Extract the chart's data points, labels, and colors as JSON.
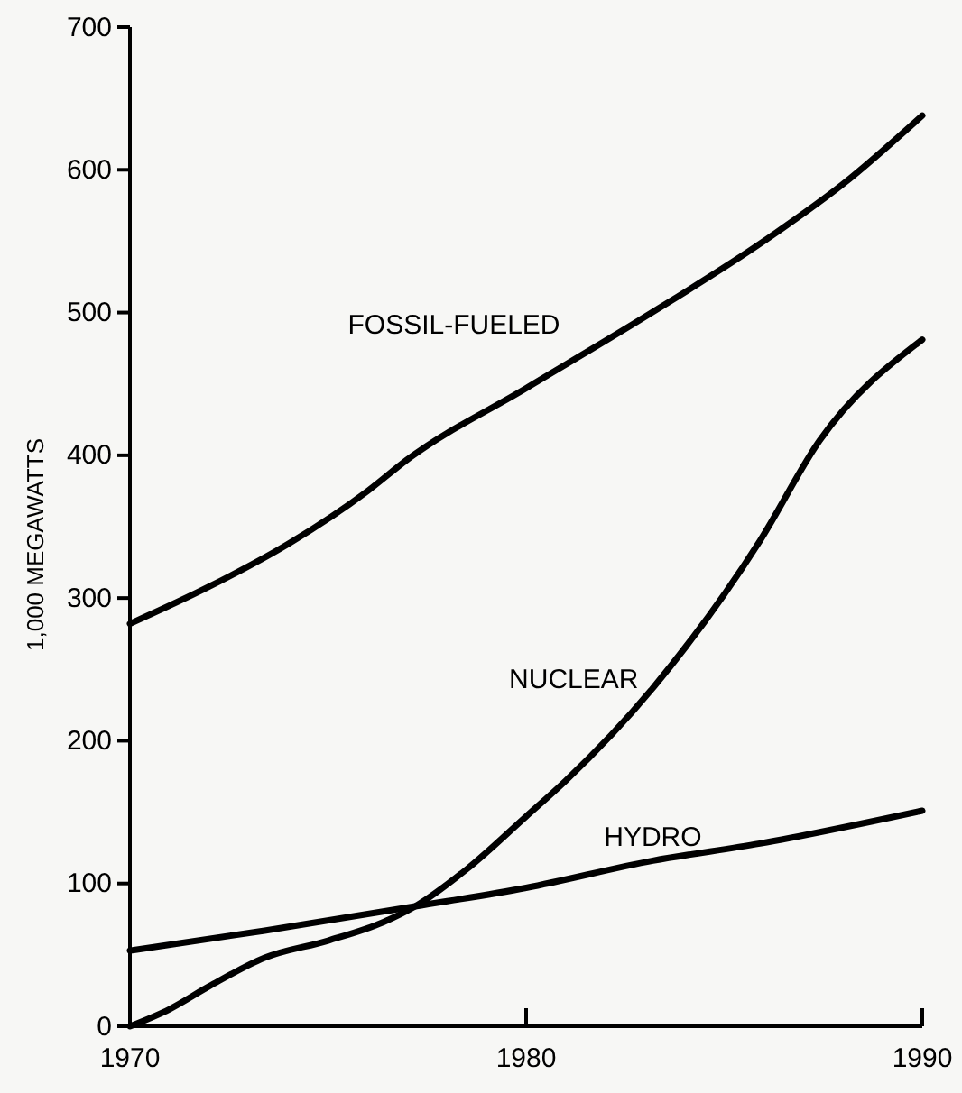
{
  "chart_data": {
    "type": "line",
    "ylabel": "1,000 MEGAWATTS",
    "xlim": [
      1970,
      1990
    ],
    "xticks": [
      1970,
      1980,
      1990
    ],
    "ylim": [
      0,
      700
    ],
    "yticks": [
      0,
      100,
      200,
      300,
      400,
      500,
      600,
      700
    ],
    "grid": false,
    "legend": false,
    "marker": "none",
    "line_style": "solid",
    "series": [
      {
        "name": "FOSSIL-FUELED",
        "color": "#000000",
        "x": [
          1970,
          1972,
          1974,
          1976,
          1977,
          1980,
          1983,
          1986,
          1988,
          1990
        ],
        "values": [
          282,
          308,
          338,
          375,
          397,
          447,
          497,
          550,
          590,
          638
        ]
      },
      {
        "name": "NUCLEAR",
        "color": "#000000",
        "x": [
          1970,
          1971,
          1972,
          1973.4,
          1975,
          1976.4,
          1977.2,
          1978.5,
          1980,
          1981,
          1983.2,
          1985.9,
          1987.4,
          1990
        ],
        "values": [
          0,
          12,
          28,
          48,
          60,
          73,
          84,
          110,
          147,
          172,
          237,
          340,
          410,
          481
        ]
      },
      {
        "name": "HYDRO",
        "color": "#000000",
        "x": [
          1970,
          1973.4,
          1977.2,
          1980,
          1983.2,
          1985.9,
          1990
        ],
        "values": [
          53,
          67,
          84,
          97,
          116,
          128,
          151
        ]
      }
    ]
  }
}
